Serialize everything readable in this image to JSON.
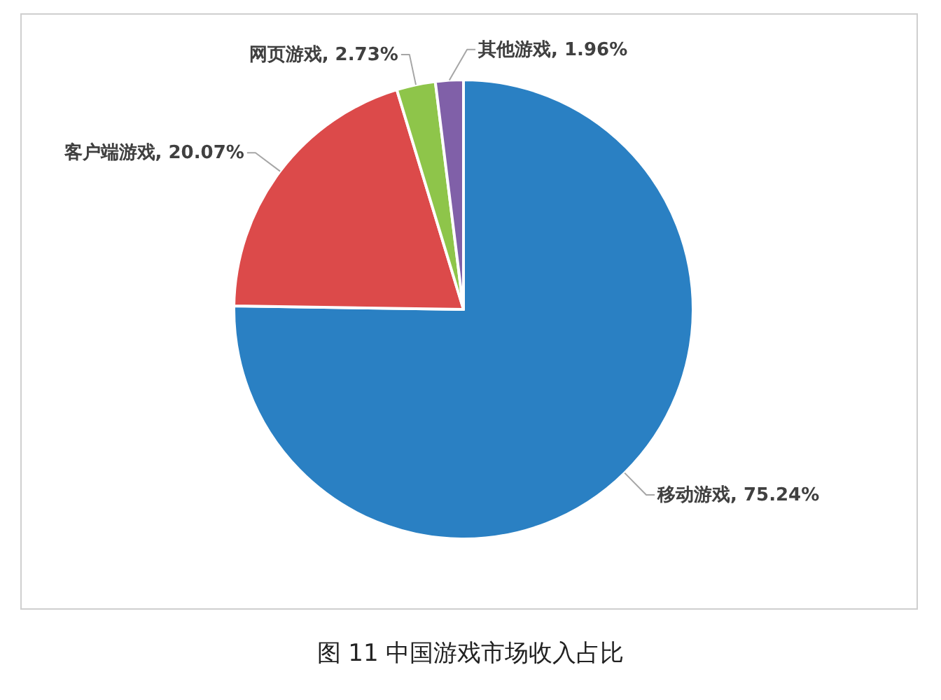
{
  "chart_data": {
    "type": "pie",
    "title": "图 11  中国游戏市场收入占比",
    "categories": [
      "移动游戏",
      "客户端游戏",
      "网页游戏",
      "其他游戏"
    ],
    "values": [
      75.24,
      20.07,
      2.73,
      1.96
    ],
    "value_labels": [
      "75.24%",
      "20.07%",
      "2.73%",
      "1.96%"
    ],
    "colors": [
      "#2a80c3",
      "#dc4a4a",
      "#8ec54a",
      "#8060a8"
    ],
    "legend": false
  }
}
